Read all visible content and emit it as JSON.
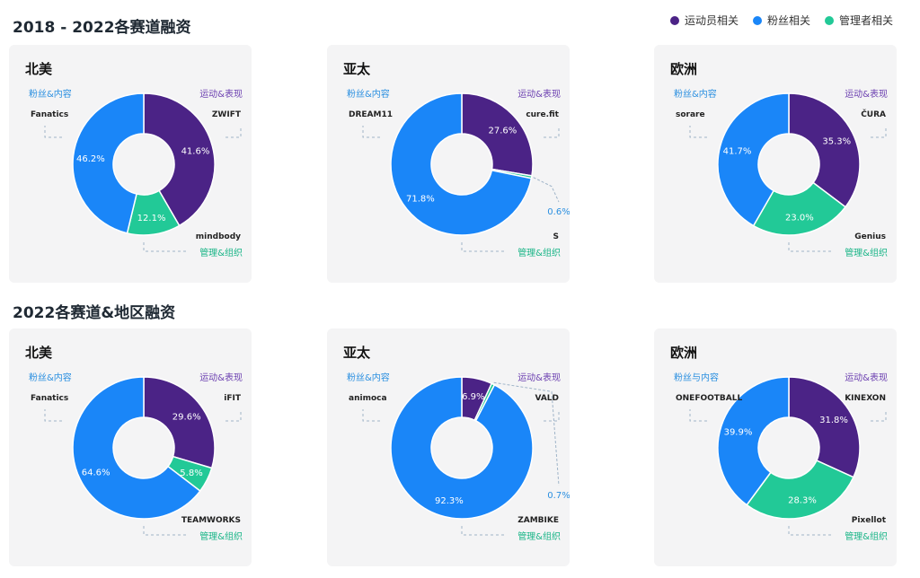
{
  "titles": {
    "top": "2018 - 2022各赛道融资",
    "bottom": "2022各赛道&地区融资"
  },
  "colors": {
    "athlete": "#4b2386",
    "fan": "#1a86f8",
    "manager": "#22c997"
  },
  "legend": [
    {
      "label": "运动员相关",
      "color": "#4b2386"
    },
    {
      "label": "粉丝相关",
      "color": "#1a86f8"
    },
    {
      "label": "管理者相关",
      "color": "#22c997"
    }
  ],
  "chart_data": [
    {
      "type": "pie",
      "region": "北美",
      "period": "2018-2022",
      "slices": [
        {
          "category": "运动&表现",
          "value": 41.6,
          "label": "41.6%",
          "logos": [
            "ZWIFT"
          ]
        },
        {
          "category": "管理&组织",
          "value": 12.1,
          "label": "12.1%",
          "logos": [
            "mindbody"
          ]
        },
        {
          "category": "粉丝&内容",
          "value": 46.2,
          "label": "46.2%",
          "logos": [
            "Fanatics"
          ]
        }
      ]
    },
    {
      "type": "pie",
      "region": "亚太",
      "period": "2018-2022",
      "slices": [
        {
          "category": "运动&表现",
          "value": 27.6,
          "label": "27.6%",
          "logos": [
            "cure.fit"
          ]
        },
        {
          "category": "管理&组织",
          "value": 0.6,
          "label": "0.6%",
          "logos": [
            "S"
          ]
        },
        {
          "category": "粉丝&内容",
          "value": 71.8,
          "label": "71.8%",
          "logos": [
            "DREAM11"
          ]
        }
      ]
    },
    {
      "type": "pie",
      "region": "欧洲",
      "period": "2018-2022",
      "slices": [
        {
          "category": "运动&表现",
          "value": 35.3,
          "label": "35.3%",
          "logos": [
            "ČURA"
          ]
        },
        {
          "category": "管理&组织",
          "value": 23.0,
          "label": "23.0%",
          "logos": [
            "Genius"
          ]
        },
        {
          "category": "粉丝&内容",
          "value": 41.7,
          "label": "41.7%",
          "logos": [
            "sorare"
          ]
        }
      ]
    },
    {
      "type": "pie",
      "region": "北美",
      "period": "2022",
      "slices": [
        {
          "category": "运动&表现",
          "value": 29.6,
          "label": "29.6%",
          "logos": [
            "iFIT"
          ]
        },
        {
          "category": "管理&组织",
          "value": 5.8,
          "label": "5.8%",
          "logos": [
            "TEAMWORKS"
          ]
        },
        {
          "category": "粉丝&内容",
          "value": 64.6,
          "label": "64.6%",
          "logos": [
            "Fanatics"
          ]
        }
      ]
    },
    {
      "type": "pie",
      "region": "亚太",
      "period": "2022",
      "slices": [
        {
          "category": "运动&表现",
          "value": 6.9,
          "label": "6.9%",
          "logos": [
            "VALD"
          ]
        },
        {
          "category": "管理&组织",
          "value": 0.7,
          "label": "0.7%",
          "logos": [
            "ZAMBIKE"
          ]
        },
        {
          "category": "粉丝&内容",
          "value": 92.3,
          "label": "92.3%",
          "logos": [
            "animoca"
          ]
        }
      ]
    },
    {
      "type": "pie",
      "region": "欧洲",
      "period": "2022",
      "slices": [
        {
          "category": "运动&表现",
          "value": 31.8,
          "label": "31.8%",
          "logos": [
            "KINEXON"
          ]
        },
        {
          "category": "管理&组织",
          "value": 28.3,
          "label": "28.3%",
          "logos": [
            "Pixellot"
          ]
        },
        {
          "category": "粉丝与内容",
          "value": 39.9,
          "label": "39.9%",
          "logos": [
            "ONEFOOTBALL"
          ]
        }
      ]
    }
  ]
}
